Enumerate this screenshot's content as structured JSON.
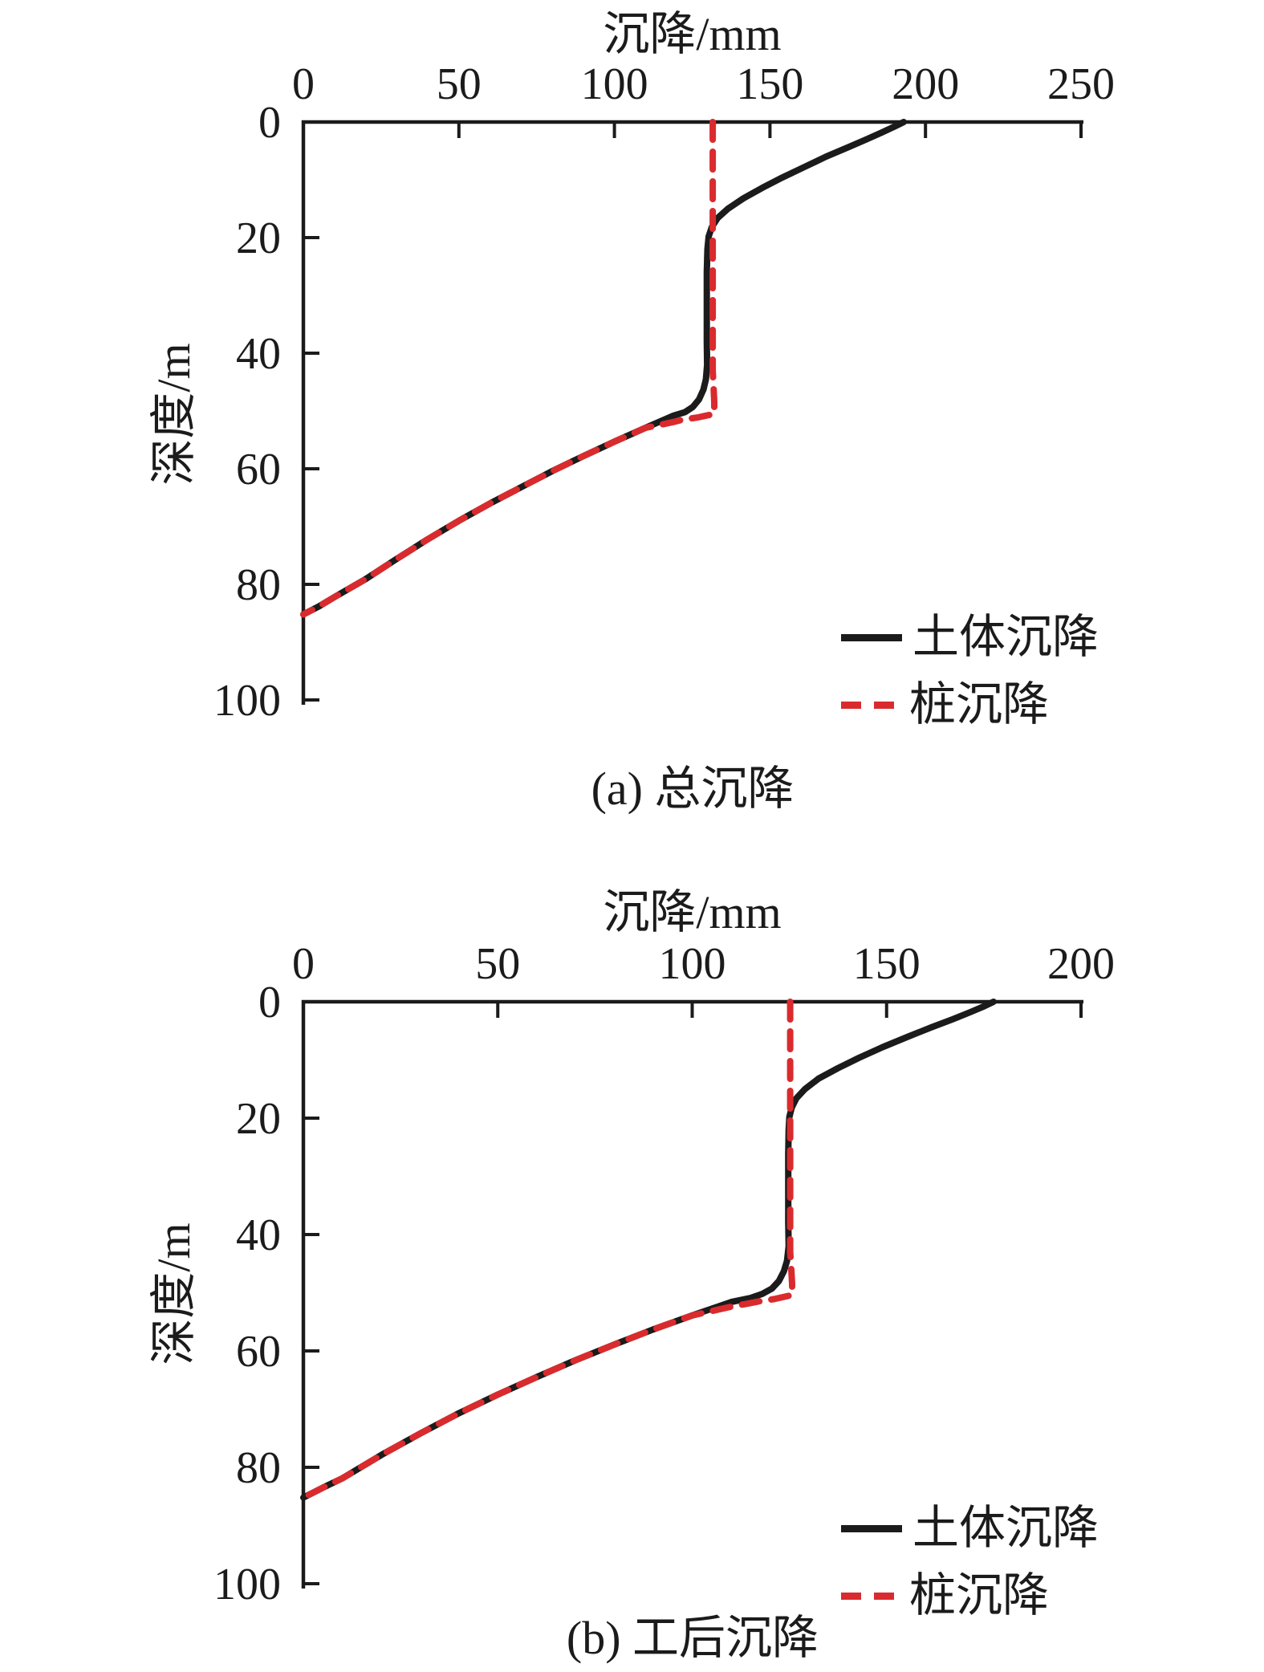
{
  "page": {
    "background": "#ffffff"
  },
  "colors": {
    "axis": "#1b1b1b",
    "soil": "#1b1b1b",
    "pile": "#d92b2e"
  },
  "chart_data": [
    {
      "id": "a",
      "type": "line",
      "title": "沉降/mm",
      "xlabel": "沉降/mm",
      "ylabel": "深度/m",
      "caption": "(a) 总沉降",
      "xlim": [
        0,
        250
      ],
      "ylim": [
        0,
        100
      ],
      "x_ticks": [
        0,
        50,
        100,
        150,
        200,
        250
      ],
      "y_ticks": [
        0,
        20,
        40,
        60,
        80,
        100
      ],
      "x_axis_position": "top",
      "y_axis_inverted": true,
      "grid": false,
      "legend_position": "lower right",
      "series": [
        {
          "name": "土体沉降",
          "color": "#1b1b1b",
          "style": "solid",
          "points": [
            [
              193,
              0
            ],
            [
              190,
              0.8
            ],
            [
              186,
              1.8
            ],
            [
              181,
              3
            ],
            [
              175,
              4.4
            ],
            [
              168,
              6
            ],
            [
              161,
              7.8
            ],
            [
              154,
              9.6
            ],
            [
              147.5,
              11.4
            ],
            [
              141.5,
              13.2
            ],
            [
              136.5,
              15
            ],
            [
              133.2,
              16.6
            ],
            [
              131.3,
              18.2
            ],
            [
              130.3,
              19.8
            ],
            [
              129.9,
              22
            ],
            [
              129.7,
              26
            ],
            [
              129.7,
              32
            ],
            [
              129.7,
              38
            ],
            [
              129.8,
              42
            ],
            [
              129.4,
              44.5
            ],
            [
              128.6,
              46.3
            ],
            [
              127.2,
              48
            ],
            [
              125.2,
              49.3
            ],
            [
              122.7,
              50.2
            ],
            [
              119,
              50.8
            ],
            [
              110,
              52.9
            ],
            [
              100,
              55.3
            ],
            [
              90,
              57.8
            ],
            [
              80,
              60.4
            ],
            [
              70,
              63.2
            ],
            [
              60,
              66
            ],
            [
              50,
              69
            ],
            [
              40,
              72.2
            ],
            [
              30,
              75.6
            ],
            [
              20,
              79.1
            ],
            [
              10,
              82.2
            ],
            [
              5,
              83.8
            ],
            [
              0,
              85.2
            ]
          ]
        },
        {
          "name": "桩沉降",
          "color": "#d92b2e",
          "style": "dashed",
          "points": [
            [
              131.6,
              0
            ],
            [
              131.6,
              43
            ],
            [
              131.9,
              46
            ],
            [
              132.1,
              48.5
            ],
            [
              132.1,
              50.5
            ],
            [
              127,
              51.1
            ],
            [
              122,
              51.5
            ],
            [
              119,
              51.9
            ],
            [
              113,
              52.6
            ],
            [
              110,
              52.9
            ],
            [
              100,
              55.3
            ],
            [
              90,
              57.8
            ],
            [
              80,
              60.4
            ],
            [
              70,
              63.2
            ],
            [
              60,
              66
            ],
            [
              50,
              69
            ],
            [
              40,
              72.2
            ],
            [
              30,
              75.6
            ],
            [
              20,
              79.1
            ],
            [
              10,
              82.2
            ],
            [
              5,
              83.8
            ],
            [
              0,
              85.2
            ]
          ]
        }
      ]
    },
    {
      "id": "b",
      "type": "line",
      "title": "沉降/mm",
      "xlabel": "沉降/mm",
      "ylabel": "深度/m",
      "caption": "(b) 工后沉降",
      "xlim": [
        0,
        200
      ],
      "ylim": [
        0,
        100
      ],
      "x_ticks": [
        0,
        50,
        100,
        150,
        200
      ],
      "y_ticks": [
        0,
        20,
        40,
        60,
        80,
        100
      ],
      "x_axis_position": "top",
      "y_axis_inverted": true,
      "grid": false,
      "legend_position": "lower right",
      "series": [
        {
          "name": "土体沉降",
          "color": "#1b1b1b",
          "style": "solid",
          "points": [
            [
              177.5,
              0
            ],
            [
              175,
              0.8
            ],
            [
              171.5,
              1.8
            ],
            [
              167,
              3
            ],
            [
              161.5,
              4.4
            ],
            [
              155.5,
              6
            ],
            [
              149,
              7.8
            ],
            [
              143,
              9.6
            ],
            [
              137.5,
              11.4
            ],
            [
              132.5,
              13.2
            ],
            [
              129,
              15
            ],
            [
              126.8,
              16.6
            ],
            [
              125.6,
              18.2
            ],
            [
              125,
              19.8
            ],
            [
              124.8,
              22
            ],
            [
              124.7,
              26
            ],
            [
              124.7,
              32
            ],
            [
              124.7,
              38
            ],
            [
              124.8,
              42
            ],
            [
              124.4,
              44.5
            ],
            [
              123.6,
              46.3
            ],
            [
              122.3,
              48
            ],
            [
              120.5,
              49.3
            ],
            [
              118,
              50.2
            ],
            [
              115,
              50.9
            ],
            [
              110,
              51.6
            ],
            [
              100,
              53.9
            ],
            [
              90,
              56.3
            ],
            [
              80,
              58.9
            ],
            [
              70,
              61.6
            ],
            [
              60,
              64.5
            ],
            [
              50,
              67.5
            ],
            [
              40,
              70.7
            ],
            [
              30,
              74.2
            ],
            [
              20,
              77.9
            ],
            [
              10,
              81.9
            ],
            [
              5,
              83.5
            ],
            [
              0,
              85.2
            ]
          ]
        },
        {
          "name": "桩沉降",
          "color": "#d92b2e",
          "style": "dashed",
          "points": [
            [
              125.2,
              0
            ],
            [
              125.2,
              43
            ],
            [
              125.5,
              46
            ],
            [
              125.7,
              48.5
            ],
            [
              125.7,
              50.4
            ],
            [
              121,
              51.1
            ],
            [
              117,
              51.5
            ],
            [
              114,
              51.9
            ],
            [
              110,
              52.4
            ],
            [
              100,
              53.9
            ],
            [
              90,
              56.3
            ],
            [
              80,
              58.9
            ],
            [
              70,
              61.6
            ],
            [
              60,
              64.5
            ],
            [
              50,
              67.5
            ],
            [
              40,
              70.7
            ],
            [
              30,
              74.2
            ],
            [
              20,
              77.9
            ],
            [
              10,
              81.9
            ],
            [
              5,
              83.5
            ],
            [
              0,
              85.2
            ]
          ]
        }
      ]
    }
  ]
}
